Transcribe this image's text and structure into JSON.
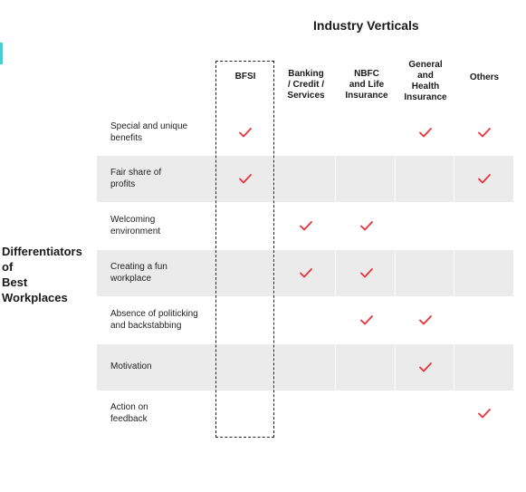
{
  "title": "Industry Verticals",
  "side_label": "Differentiators\nof\nBest\nWorkplaces",
  "columns": [
    "BFSI",
    "Banking\n/ Credit /\nServices",
    "NBFC\nand Life\nInsurance",
    "General\nand\nHealth\nInsurance",
    "Others"
  ],
  "rows": [
    {
      "label": "Special and unique\nbenefits",
      "checks": [
        true,
        false,
        false,
        true,
        true
      ]
    },
    {
      "label": "Fair share of\nprofits",
      "checks": [
        true,
        false,
        false,
        false,
        true
      ]
    },
    {
      "label": "Welcoming\nenvironment",
      "checks": [
        false,
        true,
        true,
        false,
        false
      ]
    },
    {
      "label": "Creating a fun\nworkplace",
      "checks": [
        false,
        true,
        true,
        false,
        false
      ]
    },
    {
      "label": "Absence of politicking\nand backstabbing",
      "checks": [
        false,
        false,
        true,
        true,
        false
      ]
    },
    {
      "label": "Motivation",
      "checks": [
        false,
        false,
        false,
        true,
        false
      ]
    },
    {
      "label": "Action on\nfeedback",
      "checks": [
        false,
        false,
        false,
        false,
        true
      ]
    }
  ],
  "colors": {
    "check": "#e8323c",
    "alt_row": "#ebebeb",
    "accent": "#3fd0d8"
  },
  "icons": {
    "check": "check-icon"
  }
}
